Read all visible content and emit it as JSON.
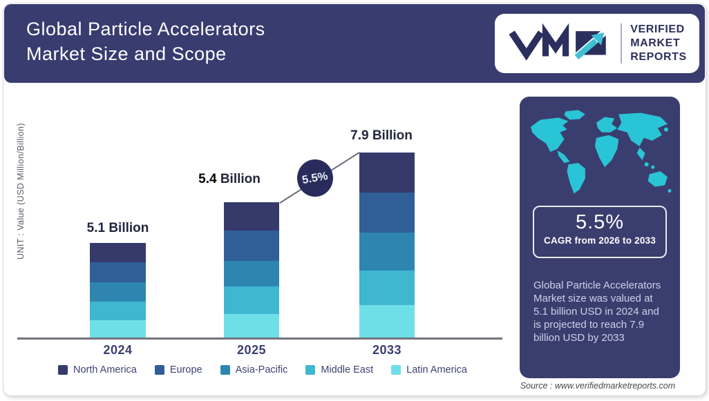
{
  "header": {
    "title_line1": "Global Particle Accelerators",
    "title_line2": "Market Size and Scope"
  },
  "logo": {
    "mark": "VMR",
    "lines": [
      "VERIFIED",
      "MARKET",
      "REPORTS"
    ]
  },
  "chart_data": {
    "type": "bar",
    "stacked": true,
    "title": "Global Particle Accelerators Market Size and Scope",
    "unit_label": "UNIT : Value (USD Million/Billion)",
    "categories": [
      "2024",
      "2025",
      "2033"
    ],
    "totals": [
      5.1,
      5.4,
      7.9
    ],
    "total_labels": [
      "5.1 Billion",
      "5.4 Billion",
      "7.9 Billion"
    ],
    "series": [
      {
        "name": "North America",
        "color": "#353a6b",
        "values": [
          1.02,
          1.13,
          1.7
        ]
      },
      {
        "name": "Europe",
        "color": "#2f5f96",
        "values": [
          1.07,
          1.19,
          1.72
        ]
      },
      {
        "name": "Asia-Pacific",
        "color": "#2e86b0",
        "values": [
          1.07,
          1.03,
          1.61
        ]
      },
      {
        "name": "Middle East",
        "color": "#3eb7cf",
        "values": [
          0.97,
          1.08,
          1.46
        ]
      },
      {
        "name": "Latin America",
        "color": "#6fdfe7",
        "values": [
          0.97,
          0.97,
          1.41
        ]
      }
    ],
    "cagr_badge": "5.5%",
    "legend_position": "bottom",
    "grid": false,
    "ylim": [
      0,
      8.5
    ]
  },
  "sidebar": {
    "cagr_value": "5.5%",
    "cagr_caption": "CAGR from 2026 to 2033",
    "description": "Global Particle Accelerators Market size was valued at 5.1 billion USD in 2024 and is projected to reach 7.9 billion USD by 2033"
  },
  "source": "Source : www.verifiedmarketreports.com",
  "colors": {
    "header_navy": "#383c6f",
    "panel_navy": "#3a3e6e",
    "logo_navy": "#2b2f5e",
    "map_teal": "#2ac4d7",
    "circle_navy": "#282c5c"
  }
}
